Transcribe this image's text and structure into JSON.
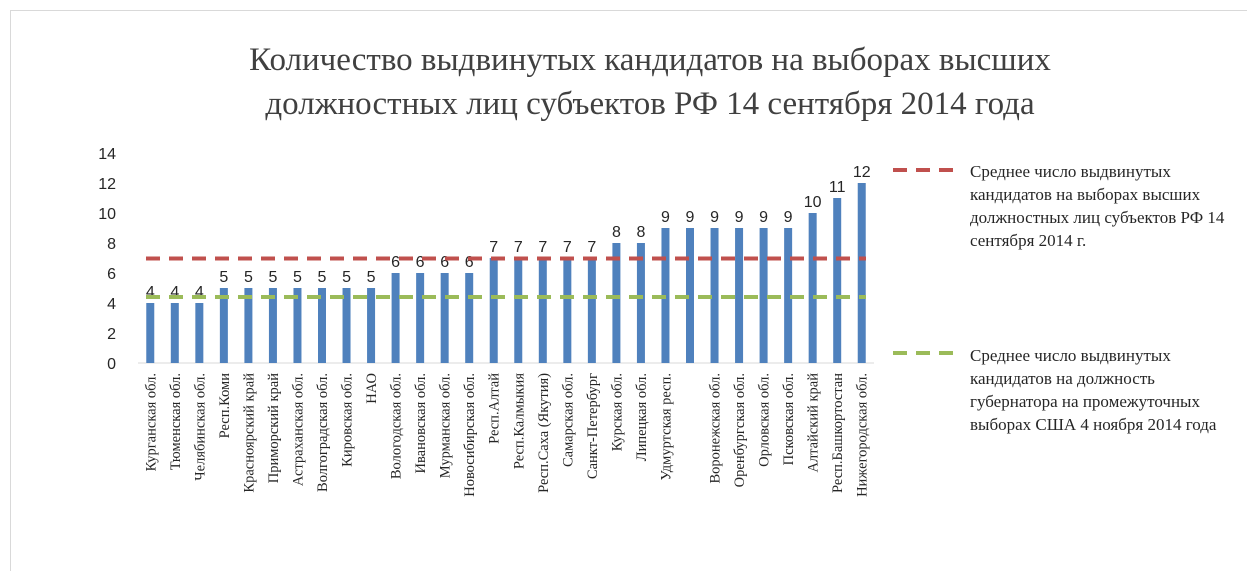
{
  "chart_data": {
    "type": "bar",
    "title": "Количество выдвинутых кандидатов на выборах высших должностных лиц субъектов РФ 14 сентября 2014 года",
    "categories": [
      "Курганская обл.",
      "Тюменская обл.",
      "Челябинская обл.",
      "Респ.Коми",
      "Красноярский край",
      "Приморский край",
      "Астраханская обл.",
      "Волгоградская обл.",
      "Кировская обл.",
      "НАО",
      "Вологодская обл.",
      "Ивановская обл.",
      "Мурманская обл.",
      "Новосибирская обл.",
      "Респ.Алтай",
      "Респ.Калмыкия",
      "Респ.Саха (Якутия)",
      "Самарская обл.",
      "Санкт-Петербург",
      "Курская обл.",
      "Липецкая обл.",
      "Удмуртская респ.",
      null,
      "Воронежская обл.",
      "Оренбургская обл.",
      "Орловская обл.",
      "Псковская обл.",
      "Алтайский край",
      "Респ.Башкортостан",
      "Нижегородская обл."
    ],
    "values": [
      4,
      4,
      4,
      5,
      5,
      5,
      5,
      5,
      5,
      5,
      6,
      6,
      6,
      6,
      7,
      7,
      7,
      7,
      7,
      8,
      8,
      9,
      9,
      9,
      9,
      9,
      9,
      10,
      11,
      12
    ],
    "color": "#4f81bd",
    "reference_lines": [
      {
        "name": "Среднее число выдвинутых кандидатов на выборах высших должностных лиц субъектов РФ 14 сентября 2014 г.",
        "color": "#c0504d",
        "value": 6.97
      },
      {
        "name": "Среднее число выдвинутых кандидатов на должность губернатора на промежуточных выборах США  4 ноября 2014 года",
        "color": "#9bbb59",
        "value": 4.4
      }
    ],
    "ylim": [
      0,
      14
    ],
    "yticks": [
      0,
      2,
      4,
      6,
      8,
      10,
      12,
      14
    ],
    "grid": false
  }
}
